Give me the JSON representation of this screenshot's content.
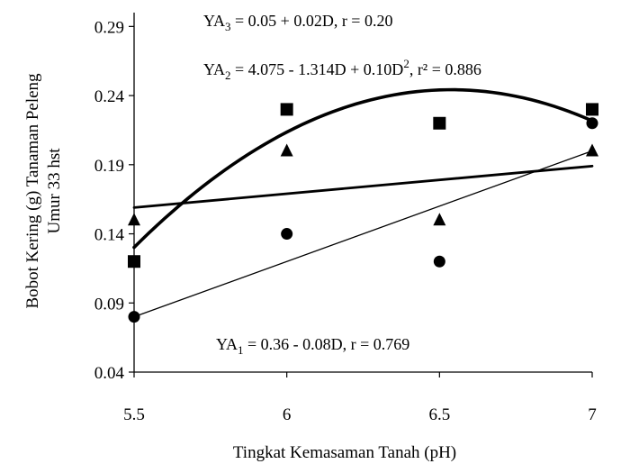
{
  "chart_data": {
    "type": "scatter",
    "xlabel": "Tingkat Kemasaman Tanah (pH)",
    "ylabel_line1": "Bobot Kering  (g) Tanaman Peleng",
    "ylabel_line2": "Umur 33 hst",
    "xlim": [
      5.5,
      7.0
    ],
    "ylim": [
      0.04,
      0.3
    ],
    "xticks": [
      5.5,
      6.0,
      6.5,
      7.0
    ],
    "xtick_labels": [
      "5.5",
      "6",
      "6.5",
      "7"
    ],
    "yticks": [
      0.04,
      0.09,
      0.14,
      0.19,
      0.24,
      0.29
    ],
    "ytick_labels": [
      "0.04",
      "0.09",
      "0.14",
      "0.19",
      "0.24",
      "0.29"
    ],
    "grid": false,
    "series": [
      {
        "marker": "circle",
        "x": [
          5.5,
          6.0,
          6.5,
          7.0
        ],
        "y": [
          0.08,
          0.14,
          0.12,
          0.22
        ],
        "fit": {
          "kind": "linear",
          "x": [
            5.5,
            7.0
          ],
          "y": [
            0.08,
            0.2
          ],
          "stroke": "thin"
        }
      },
      {
        "marker": "square",
        "x": [
          5.5,
          6.0,
          6.5,
          7.0
        ],
        "y": [
          0.12,
          0.23,
          0.22,
          0.23
        ],
        "fit": {
          "kind": "quadratic",
          "x": [
            5.5,
            5.75,
            6.0,
            6.25,
            6.5,
            6.75,
            7.0
          ],
          "y": [
            0.128,
            0.181,
            0.215,
            0.236,
            0.242,
            0.237,
            0.224
          ],
          "stroke": "thick"
        }
      },
      {
        "marker": "triangle",
        "x": [
          5.5,
          6.0,
          6.5,
          7.0
        ],
        "y": [
          0.15,
          0.2,
          0.15,
          0.2
        ],
        "fit": {
          "kind": "linear",
          "x": [
            5.5,
            7.0
          ],
          "y": [
            0.159,
            0.189
          ],
          "stroke": "medium"
        }
      }
    ],
    "annotations": {
      "ya3": {
        "pre": "YA",
        "sub": "3",
        "post": " = 0.05 + 0.02D, r = 0.20"
      },
      "ya2": {
        "pre": "YA",
        "sub": "2",
        "mid": " = 4.075 - 1.314D + 0.10D",
        "sup": "2",
        "post": ", r² = 0.886"
      },
      "ya1": {
        "pre": "YA",
        "sub": "1",
        "post": " = 0.36 - 0.08D, r = 0.769"
      }
    }
  }
}
